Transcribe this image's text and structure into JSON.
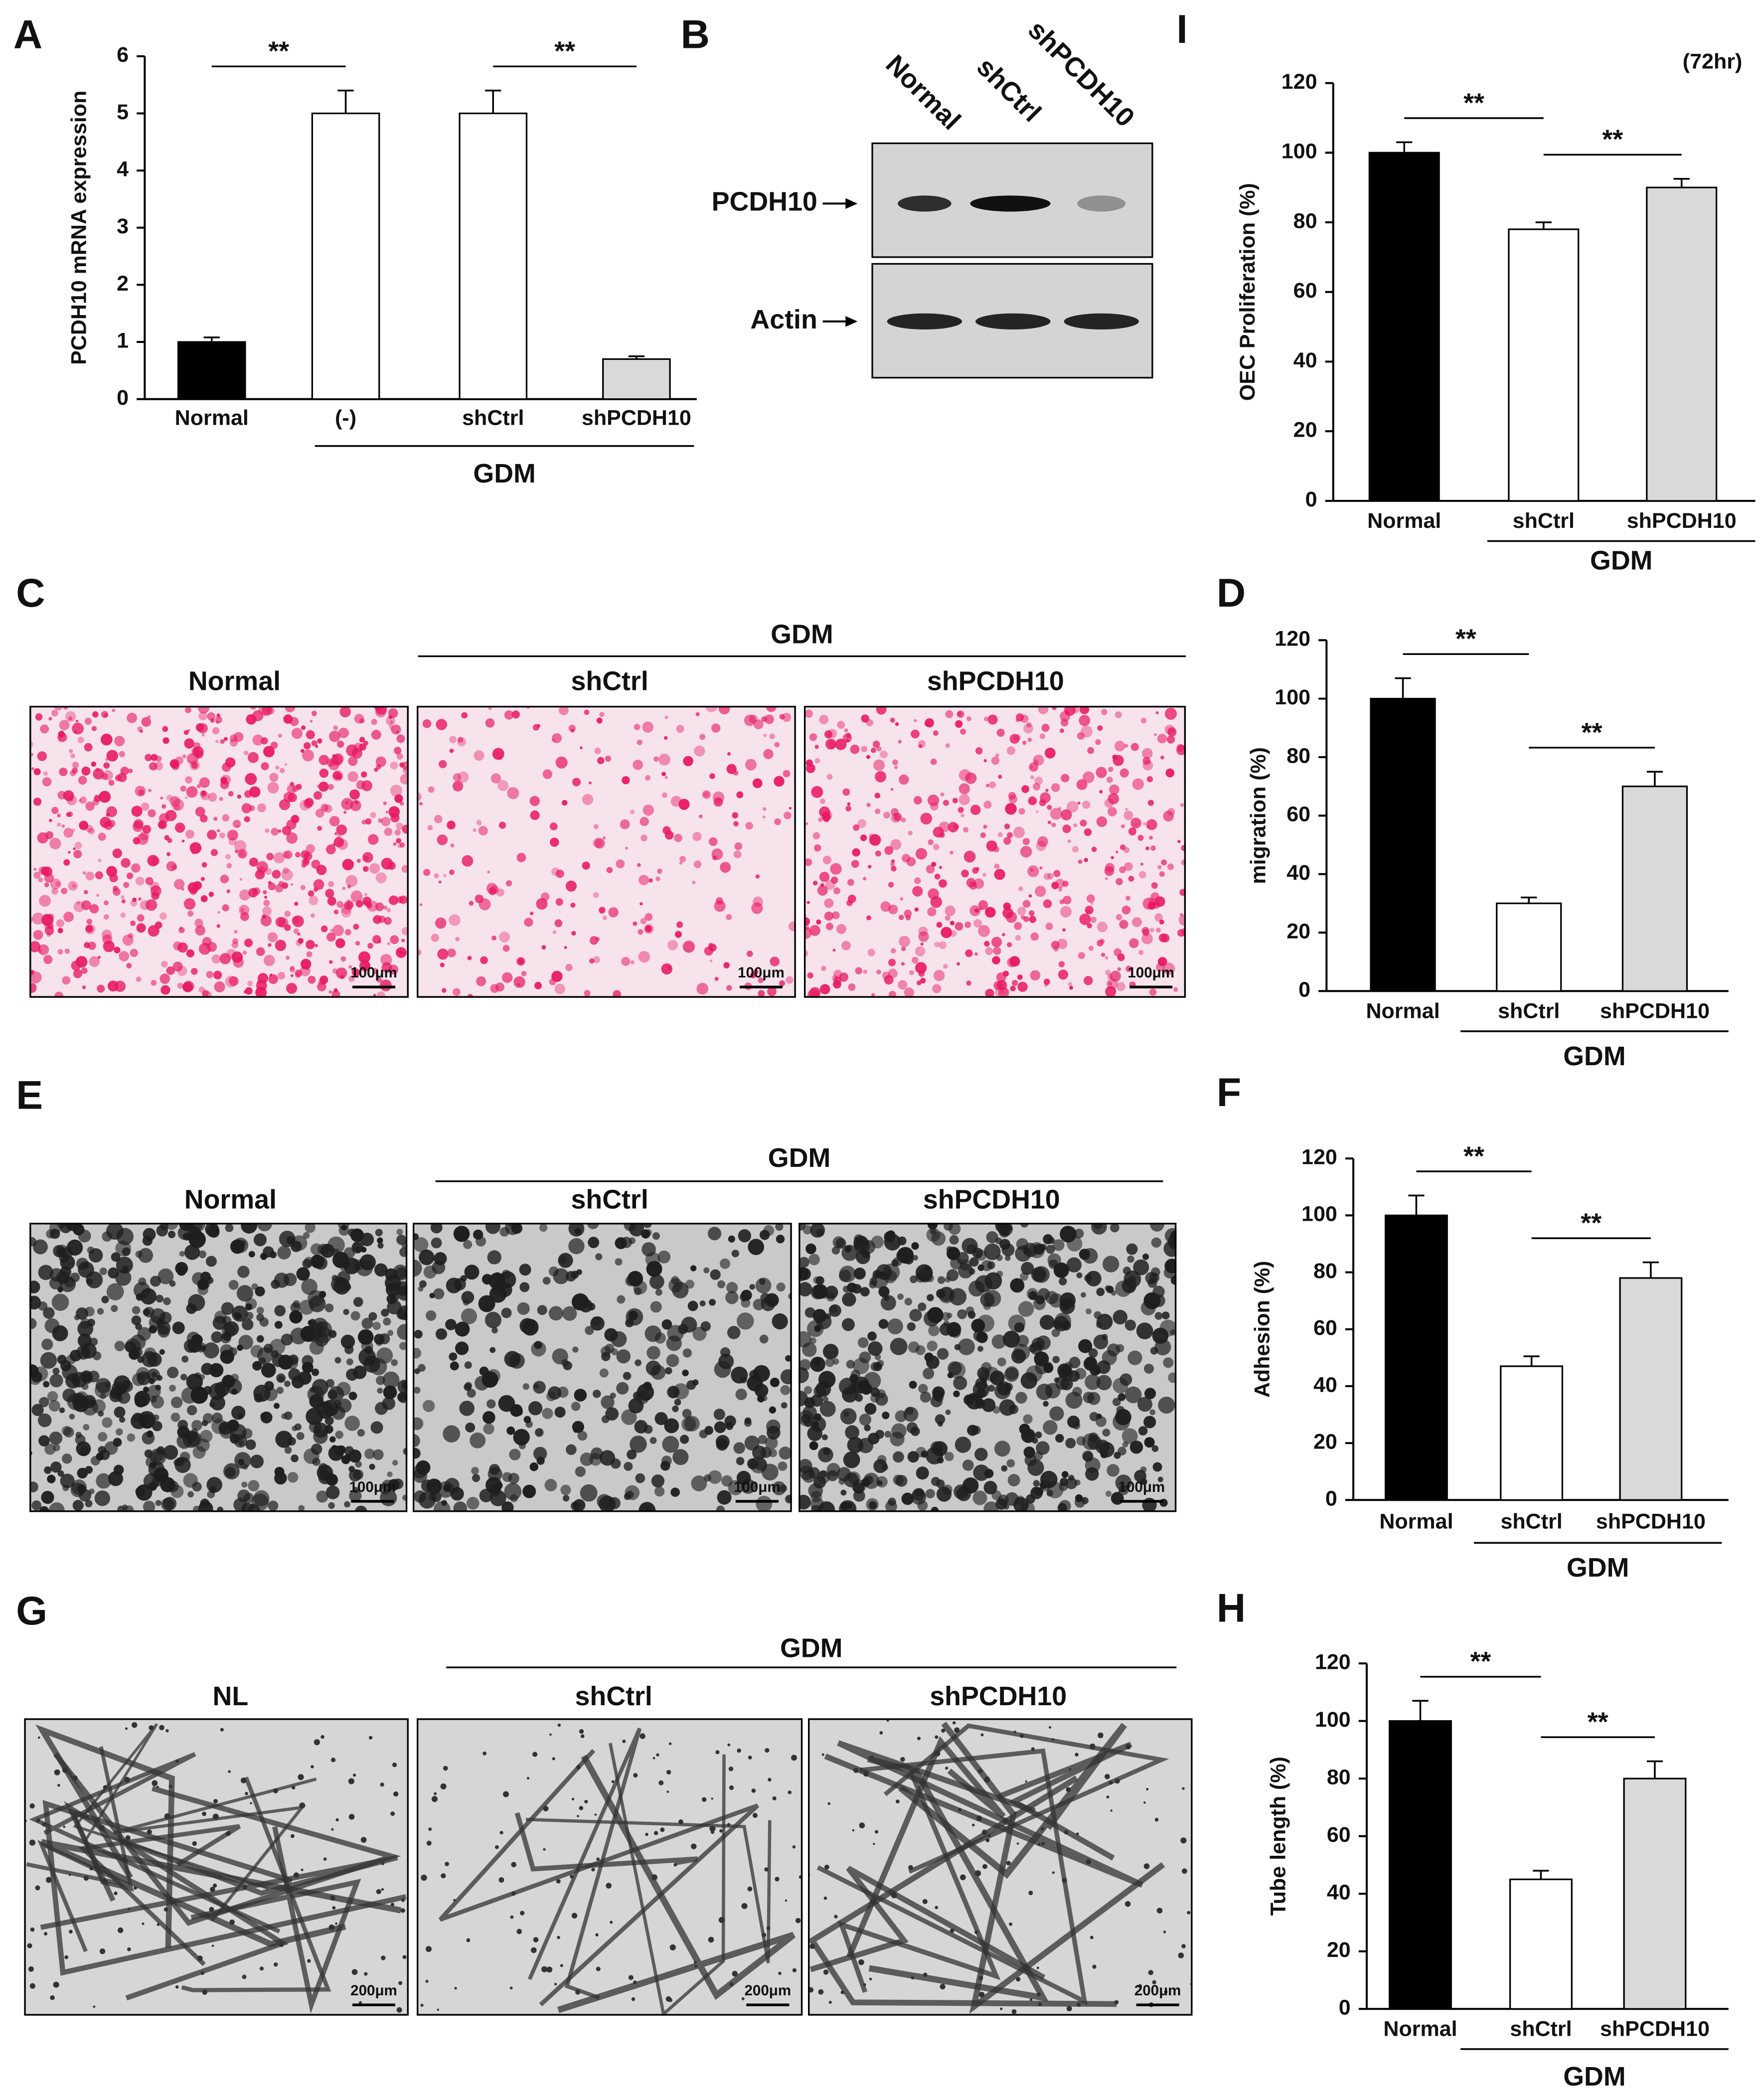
{
  "chart_data": [
    {
      "type": "bar",
      "panel": "A",
      "ylabel": "PCDH10 mRNA expression",
      "categories": [
        "Normal",
        "(-)",
        "shCtrl",
        "shPCDH10"
      ],
      "values": [
        1,
        5,
        5,
        0.7
      ],
      "errors": [
        0.08,
        0.4,
        0.4,
        0.05
      ],
      "colors": [
        "#000000",
        "#ffffff",
        "#ffffff",
        "#d9d9d9"
      ],
      "group": "GDM",
      "comparisons": [
        {
          "label": "**",
          "pair": [
            "Normal",
            "(-)"
          ]
        },
        {
          "label": "**",
          "pair": [
            "shCtrl",
            "shPCDH10"
          ]
        }
      ],
      "ylim": [
        0,
        6
      ],
      "yticks": [
        0,
        1,
        2,
        3,
        4,
        5,
        6
      ]
    },
    {
      "type": "bar",
      "panel": "I",
      "title": "(72hr)",
      "ylabel": "OEC Proliferation (%)",
      "categories": [
        "Normal",
        "shCtrl",
        "shPCDH10"
      ],
      "values": [
        100,
        78,
        90
      ],
      "errors": [
        3,
        2,
        2.5
      ],
      "colors": [
        "#000000",
        "#ffffff",
        "#d9d9d9"
      ],
      "group": "GDM",
      "comparisons": [
        {
          "label": "**",
          "pair": [
            "Normal",
            "shCtrl"
          ]
        },
        {
          "label": "**",
          "pair": [
            "shCtrl",
            "shPCDH10"
          ]
        }
      ],
      "ylim": [
        0,
        120
      ],
      "yticks": [
        0,
        20,
        40,
        60,
        80,
        100,
        120
      ]
    },
    {
      "type": "bar",
      "panel": "D",
      "ylabel": "migration (%)",
      "categories": [
        "Normal",
        "shCtrl",
        "shPCDH10"
      ],
      "values": [
        100,
        30,
        70
      ],
      "errors": [
        7,
        2,
        5
      ],
      "colors": [
        "#000000",
        "#ffffff",
        "#d9d9d9"
      ],
      "group": "GDM",
      "comparisons": [
        {
          "label": "**",
          "pair": [
            "Normal",
            "shCtrl"
          ]
        },
        {
          "label": "**",
          "pair": [
            "shCtrl",
            "shPCDH10"
          ]
        }
      ],
      "ylim": [
        0,
        120
      ],
      "yticks": [
        0,
        20,
        40,
        60,
        80,
        100,
        120
      ]
    },
    {
      "type": "bar",
      "panel": "F",
      "ylabel": "Adhesion (%)",
      "categories": [
        "Normal",
        "shCtrl",
        "shPCDH10"
      ],
      "values": [
        100,
        47,
        78
      ],
      "errors": [
        7,
        3.5,
        5.5
      ],
      "colors": [
        "#000000",
        "#ffffff",
        "#d9d9d9"
      ],
      "group": "GDM",
      "comparisons": [
        {
          "label": "**",
          "pair": [
            "Normal",
            "shCtrl"
          ]
        },
        {
          "label": "**",
          "pair": [
            "shCtrl",
            "shPCDH10"
          ]
        }
      ],
      "ylim": [
        0,
        120
      ],
      "yticks": [
        0,
        20,
        40,
        60,
        80,
        100,
        120
      ]
    },
    {
      "type": "bar",
      "panel": "H",
      "ylabel": "Tube length (%)",
      "categories": [
        "Normal",
        "shCtrl",
        "shPCDH10"
      ],
      "values": [
        100,
        45,
        80
      ],
      "errors": [
        7,
        3,
        6
      ],
      "colors": [
        "#000000",
        "#ffffff",
        "#d9d9d9"
      ],
      "group": "GDM",
      "comparisons": [
        {
          "label": "**",
          "pair": [
            "Normal",
            "shCtrl"
          ]
        },
        {
          "label": "**",
          "pair": [
            "shCtrl",
            "shPCDH10"
          ]
        }
      ],
      "ylim": [
        0,
        120
      ],
      "yticks": [
        0,
        20,
        40,
        60,
        80,
        100,
        120
      ]
    }
  ],
  "blot": {
    "panel": "B",
    "lanes": [
      "Normal",
      "shCtrl",
      "shPCDH10"
    ],
    "rows": [
      "PCDH10",
      "Actin"
    ]
  },
  "images": [
    {
      "panel": "C",
      "group": "GDM",
      "columns": [
        "Normal",
        "shCtrl",
        "shPCDH10"
      ],
      "scale": "100μm"
    },
    {
      "panel": "E",
      "group": "GDM",
      "columns": [
        "Normal",
        "shCtrl",
        "shPCDH10"
      ],
      "scale": "100μm"
    },
    {
      "panel": "G",
      "group": "GDM",
      "columns": [
        "NL",
        "shCtrl",
        "shPCDH10"
      ],
      "scale": "200μm"
    }
  ]
}
